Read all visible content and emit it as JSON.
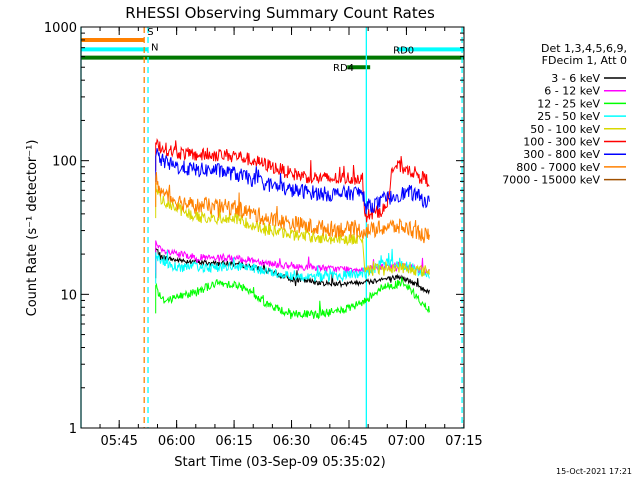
{
  "chart_data": {
    "type": "line",
    "title": "RHESSI Observing Summary Count Rates",
    "xlabel": "Start Time (03-Sep-09 05:35:02)",
    "ylabel": "Count Rate (s⁻¹ detector⁻¹)",
    "yscale": "log",
    "ylim": [
      1,
      1000
    ],
    "xlim_minutes": [
      0,
      100
    ],
    "x_units": "minutes after 05:35:02",
    "yticks": [
      {
        "value": 1,
        "label": "1"
      },
      {
        "value": 10,
        "label": "10"
      },
      {
        "value": 100,
        "label": "100"
      },
      {
        "value": 1000,
        "label": "1000"
      }
    ],
    "xticks": [
      {
        "value": 9.97,
        "label": "05:45"
      },
      {
        "value": 24.97,
        "label": "06:00"
      },
      {
        "value": 39.97,
        "label": "06:15"
      },
      {
        "value": 54.97,
        "label": "06:30"
      },
      {
        "value": 69.97,
        "label": "06:45"
      },
      {
        "value": 84.97,
        "label": "07:00"
      },
      {
        "value": 99.97,
        "label": "07:15"
      }
    ],
    "legend_title": [
      "Det 1,3,4,5,6,9,",
      "FDecim 1, Att 0"
    ],
    "series": [
      {
        "name": "3 - 6 keV",
        "color": "#000000",
        "x": [
          19.5,
          21,
          25,
          30,
          35,
          40,
          45,
          50,
          55,
          60,
          65,
          70,
          74,
          76,
          78,
          80,
          83,
          86,
          89,
          91
        ],
        "y": [
          22,
          19,
          18,
          17.5,
          17,
          17,
          16,
          14.5,
          13,
          12.5,
          12,
          12,
          12.5,
          12.5,
          13,
          13,
          13.5,
          12.5,
          11,
          10.5
        ]
      },
      {
        "name": "6 - 12 keV",
        "color": "#ff00ff",
        "x": [
          19.5,
          21,
          25,
          30,
          35,
          40,
          45,
          50,
          55,
          60,
          65,
          70,
          74,
          76,
          78,
          80,
          83,
          86,
          89,
          91
        ],
        "y": [
          24,
          21,
          20,
          19,
          18.5,
          18.5,
          18,
          17,
          16,
          16,
          15.5,
          15.5,
          15.5,
          15.5,
          16,
          16,
          16.5,
          16,
          15,
          15
        ]
      },
      {
        "name": "12 - 25 keV",
        "color": "#00ff00",
        "x": [
          19.5,
          21,
          25,
          30,
          35,
          40,
          45,
          50,
          55,
          60,
          65,
          70,
          74,
          76,
          78,
          80,
          83,
          86,
          89,
          91
        ],
        "y": [
          12,
          9,
          9.5,
          10.5,
          12,
          12,
          10,
          8,
          7.2,
          7,
          7.3,
          7.8,
          8.8,
          10,
          11,
          11.5,
          12,
          11,
          8.5,
          7.5
        ]
      },
      {
        "name": "25 - 50 keV",
        "color": "#00ffff",
        "x": [
          19.5,
          21,
          25,
          30,
          35,
          40,
          45,
          50,
          55,
          60,
          65,
          70,
          74,
          76,
          78,
          80,
          83,
          86,
          89,
          91
        ],
        "y": [
          20,
          17.5,
          16,
          16,
          16,
          16,
          15.5,
          14.5,
          14,
          13.5,
          13.5,
          14,
          14.5,
          15,
          16.5,
          17,
          17,
          16,
          14.5,
          14
        ]
      },
      {
        "name": "50 - 100 keV",
        "color": "#d8d800",
        "x": [
          19.5,
          21,
          25,
          30,
          35,
          40,
          45,
          50,
          55,
          60,
          65,
          70,
          73.5,
          74,
          76,
          78,
          80,
          83,
          86,
          89,
          91
        ],
        "y": [
          62,
          52,
          44,
          38,
          37,
          37,
          33,
          30,
          28,
          27,
          26,
          26,
          26,
          16,
          15,
          15.5,
          15,
          16,
          15.5,
          15,
          15
        ]
      },
      {
        "name": "100 - 300 keV",
        "color": "#ff0000",
        "x": [
          19.5,
          21,
          25,
          30,
          35,
          40,
          45,
          50,
          55,
          60,
          65,
          70,
          73.5,
          74,
          78,
          80,
          81,
          82,
          86,
          89,
          91
        ],
        "y": [
          140,
          125,
          115,
          110,
          110,
          110,
          100,
          90,
          80,
          75,
          73,
          74,
          75,
          38,
          42,
          45,
          80,
          92,
          85,
          75,
          70
        ]
      },
      {
        "name": "300 - 800 keV",
        "color": "#0000ff",
        "x": [
          19.5,
          21,
          25,
          30,
          35,
          40,
          45,
          50,
          55,
          60,
          65,
          70,
          73.5,
          74,
          78,
          80,
          83,
          86,
          89,
          91
        ],
        "y": [
          115,
          100,
          90,
          85,
          85,
          80,
          72,
          65,
          60,
          58,
          56,
          57,
          58,
          45,
          48,
          52,
          56,
          58,
          52,
          48
        ]
      },
      {
        "name": "800 - 7000 keV",
        "color": "#ff8000",
        "x": [
          19.5,
          21,
          25,
          30,
          35,
          40,
          45,
          50,
          55,
          60,
          65,
          70,
          74,
          76,
          78,
          80,
          83,
          86,
          89,
          91
        ],
        "y": [
          75,
          58,
          50,
          46,
          45,
          45,
          40,
          36,
          34,
          32,
          31,
          30.5,
          30,
          30,
          31,
          32,
          32,
          31,
          28,
          27
        ]
      },
      {
        "name": "7000 - 15000 keV",
        "color": "#a05000",
        "x": [],
        "y": []
      }
    ],
    "annotations": [
      {
        "label": "S",
        "color": "#ff8000"
      },
      {
        "label": "N",
        "color": "#00ffff"
      },
      {
        "label": "RD0",
        "color": "#007800"
      },
      {
        "label": "RD4",
        "color": "#007800"
      }
    ],
    "flag_bars": [
      {
        "label": "S",
        "color": "#ff8000",
        "x0": 0,
        "x1": 16.5,
        "y": 800
      },
      {
        "label": "N",
        "color": "#00ffff",
        "x0": 0,
        "x1": 17.5,
        "y": 680
      },
      {
        "label": "RD0",
        "color": "#007800",
        "x0": 0,
        "x1": 100,
        "y": 590
      },
      {
        "label": "RD4",
        "color": "#007800",
        "x0": 69.5,
        "x1": 75.5,
        "y": 500
      },
      {
        "label": "",
        "color": "#00ffff",
        "x0": 82.5,
        "x1": 100,
        "y": 680
      }
    ],
    "vlines": [
      {
        "x": 0,
        "color": "#00ffff",
        "style": "solid"
      },
      {
        "x": 16.5,
        "color": "#ff8000",
        "style": "dashed"
      },
      {
        "x": 17.5,
        "color": "#00ffff",
        "style": "dashed"
      },
      {
        "x": 74.5,
        "color": "#00ffff",
        "style": "solid"
      },
      {
        "x": 99.5,
        "color": "#00ffff",
        "style": "dashed"
      }
    ]
  },
  "footer": {
    "timestamp": "15-Oct-2021 17:21"
  }
}
